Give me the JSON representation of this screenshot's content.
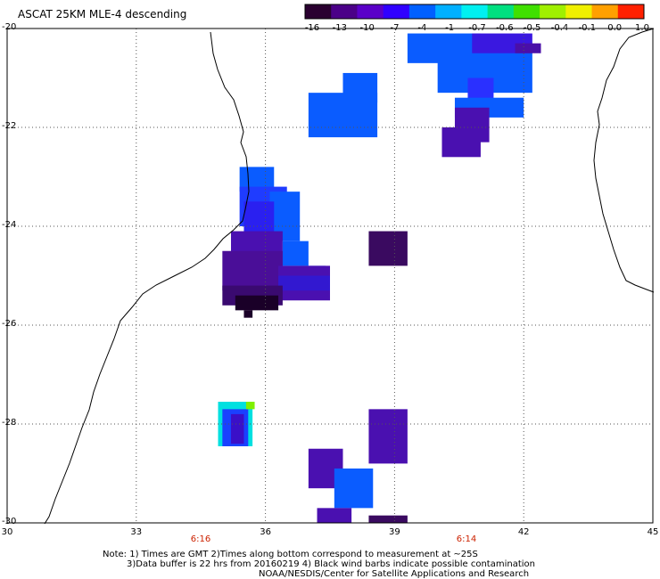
{
  "title": "ASCAT 25KM MLE-4 descending",
  "colorbar": {
    "labels": [
      "-16",
      "-13",
      "-10",
      "-7",
      "-4",
      "-1",
      "-0.7",
      "-0.6",
      "-0.5",
      "-0.4",
      "-0.1",
      "0.0",
      "1.0"
    ],
    "colors": [
      "#2a0030",
      "#4b0088",
      "#5a00c8",
      "#3000ff",
      "#0060ff",
      "#00b0ff",
      "#00f0f0",
      "#00e080",
      "#40e000",
      "#a0f000",
      "#f0f000",
      "#ffa000",
      "#ff2000"
    ]
  },
  "map": {
    "lon_range": [
      30,
      45
    ],
    "lat_range": [
      -30,
      -20
    ],
    "lon_ticks": [
      "30",
      "33",
      "36",
      "39",
      "42",
      "45"
    ],
    "lat_ticks": [
      "-20",
      "-22",
      "-24",
      "-26",
      "-28",
      "-30"
    ],
    "grid": true
  },
  "times": [
    "6:16",
    "6:14"
  ],
  "notes": [
    "Note: 1) Times are GMT 2)Times along bottom correspond to measurement at ~25S",
    "3)Data buffer is 22 hrs from 20160219 4) Black wind barbs indicate possible contamination",
    "NOAA/NESDIS/Center for Satellite Applications and Research"
  ],
  "swaths": [
    {
      "lon": [
        37.8,
        38.6
      ],
      "lat": [
        -20.9,
        -21.5
      ],
      "color": "#0a5cff"
    },
    {
      "lon": [
        37.0,
        38.6
      ],
      "lat": [
        -21.3,
        -22.2
      ],
      "color": "#0a5cff"
    },
    {
      "lon": [
        39.3,
        41.0
      ],
      "lat": [
        -20.1,
        -20.7
      ],
      "color": "#0a5cff"
    },
    {
      "lon": [
        40.0,
        42.2
      ],
      "lat": [
        -20.3,
        -21.3
      ],
      "color": "#0a5cff"
    },
    {
      "lon": [
        40.8,
        42.2
      ],
      "lat": [
        -20.1,
        -20.5
      ],
      "color": "#3a18e0"
    },
    {
      "lon": [
        41.8,
        42.4
      ],
      "lat": [
        -20.3,
        -20.5
      ],
      "color": "#4a0fa8"
    },
    {
      "lon": [
        40.7,
        41.3
      ],
      "lat": [
        -21.0,
        -21.7
      ],
      "color": "#2a30ff"
    },
    {
      "lon": [
        40.4,
        42.0
      ],
      "lat": [
        -21.4,
        -21.8
      ],
      "color": "#0a5cff"
    },
    {
      "lon": [
        40.4,
        41.2
      ],
      "lat": [
        -21.6,
        -22.3
      ],
      "color": "#4a10b0"
    },
    {
      "lon": [
        40.1,
        41.0
      ],
      "lat": [
        -22.0,
        -22.6
      ],
      "color": "#4a10b0"
    },
    {
      "lon": [
        35.4,
        36.2
      ],
      "lat": [
        -22.8,
        -23.3
      ],
      "color": "#0a5cff"
    },
    {
      "lon": [
        35.4,
        36.5
      ],
      "lat": [
        -23.2,
        -24.0
      ],
      "color": "#1f3cff"
    },
    {
      "lon": [
        36.1,
        36.8
      ],
      "lat": [
        -23.3,
        -24.3
      ],
      "color": "#0a5cff"
    },
    {
      "lon": [
        35.5,
        36.2
      ],
      "lat": [
        -23.5,
        -24.2
      ],
      "color": "#2a20f0"
    },
    {
      "lon": [
        35.2,
        36.4
      ],
      "lat": [
        -24.1,
        -24.8
      ],
      "color": "#4a10b0"
    },
    {
      "lon": [
        36.4,
        37.0
      ],
      "lat": [
        -24.3,
        -24.8
      ],
      "color": "#0a5cff"
    },
    {
      "lon": [
        36.8,
        37.4
      ],
      "lat": [
        -24.8,
        -25.0
      ],
      "color": "#0a5cff"
    },
    {
      "lon": [
        35.0,
        36.4
      ],
      "lat": [
        -24.5,
        -25.3
      ],
      "color": "#4a0e98"
    },
    {
      "lon": [
        36.3,
        37.5
      ],
      "lat": [
        -24.8,
        -25.5
      ],
      "color": "#4a10b0"
    },
    {
      "lon": [
        36.3,
        37.5
      ],
      "lat": [
        -25.0,
        -25.3
      ],
      "color": "#3218d0"
    },
    {
      "lon": [
        35.0,
        36.4
      ],
      "lat": [
        -25.2,
        -25.6
      ],
      "color": "#3a0a70"
    },
    {
      "lon": [
        35.3,
        36.3
      ],
      "lat": [
        -25.4,
        -25.7
      ],
      "color": "#1a0028"
    },
    {
      "lon": [
        35.5,
        35.7
      ],
      "lat": [
        -25.7,
        -25.85
      ],
      "color": "#1a0028"
    },
    {
      "lon": [
        38.4,
        39.3
      ],
      "lat": [
        -24.1,
        -24.8
      ],
      "color": "#3a0a60"
    },
    {
      "lon": [
        34.9,
        35.7
      ],
      "lat": [
        -27.55,
        -28.45
      ],
      "color": "#00e0e0"
    },
    {
      "lon": [
        35.0,
        35.6
      ],
      "lat": [
        -27.7,
        -28.45
      ],
      "color": "#1a40ff"
    },
    {
      "lon": [
        35.2,
        35.5
      ],
      "lat": [
        -27.8,
        -28.4
      ],
      "color": "#3a10c8"
    },
    {
      "lon": [
        35.55,
        35.75
      ],
      "lat": [
        -27.55,
        -27.7
      ],
      "color": "#80f000"
    },
    {
      "lon": [
        38.4,
        39.3
      ],
      "lat": [
        -27.7,
        -28.8
      ],
      "color": "#4a10b0"
    },
    {
      "lon": [
        37.0,
        37.8
      ],
      "lat": [
        -28.5,
        -29.3
      ],
      "color": "#4a10b0"
    },
    {
      "lon": [
        37.6,
        38.5
      ],
      "lat": [
        -28.9,
        -29.7
      ],
      "color": "#0a5cff"
    },
    {
      "lon": [
        37.2,
        38.0
      ],
      "lat": [
        -29.7,
        -30.0
      ],
      "color": "#4a10b0"
    },
    {
      "lon": [
        38.4,
        39.3
      ],
      "lat": [
        -29.85,
        -30.0
      ],
      "color": "#3a0a60"
    }
  ]
}
